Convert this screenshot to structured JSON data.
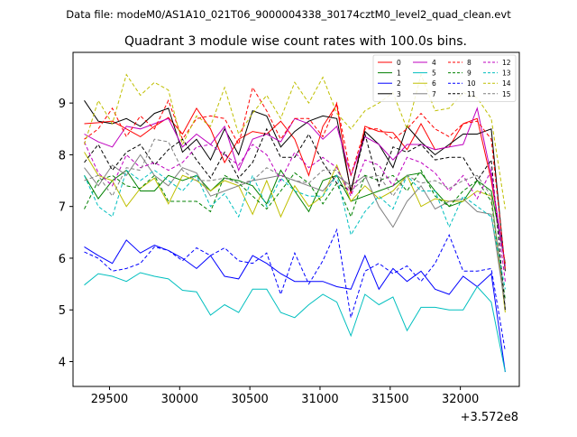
{
  "figure": {
    "suptitle": "Data file: modeM0/AS1A10_021T06_9000004338_30174cztM0_level2_quad_clean.evt"
  },
  "chart_data": {
    "type": "line",
    "title": "Quadrant 3 module wise count rates with 100.0s bins.",
    "xlabel": "",
    "ylabel": "",
    "x_offset_label": "+3.572e8",
    "xlim": [
      29240,
      32420
    ],
    "ylim": [
      3.52,
      9.98
    ],
    "xticks": [
      29500,
      30000,
      30500,
      31000,
      31500,
      32000
    ],
    "yticks": [
      4,
      5,
      6,
      7,
      8,
      9
    ],
    "grid": false,
    "legend_position": "top-right",
    "legend_columns": 4,
    "x": [
      29320,
      29420,
      29520,
      29620,
      29720,
      29820,
      29920,
      30020,
      30120,
      30220,
      30320,
      30420,
      30520,
      30620,
      30720,
      30820,
      30920,
      31020,
      31120,
      31220,
      31320,
      31420,
      31520,
      31620,
      31720,
      31820,
      31920,
      32020,
      32120,
      32220,
      32320
    ],
    "series": [
      {
        "name": "0",
        "color": "#ff0000",
        "dash": false,
        "values": [
          8.6,
          8.62,
          8.65,
          8.5,
          8.35,
          8.55,
          8.72,
          8.4,
          8.9,
          8.5,
          7.85,
          8.3,
          8.45,
          8.4,
          8.65,
          8.3,
          7.6,
          8.55,
          8.97,
          7.25,
          8.55,
          8.45,
          8.43,
          8.1,
          8.6,
          8.1,
          8.15,
          8.6,
          8.7,
          7.5,
          5.9
        ]
      },
      {
        "name": "1",
        "color": "#008000",
        "dash": false,
        "values": [
          7.6,
          7.15,
          7.5,
          7.7,
          7.3,
          7.3,
          7.6,
          7.5,
          7.6,
          7.3,
          7.55,
          7.5,
          7.4,
          7.05,
          7.7,
          7.3,
          6.9,
          7.5,
          7.6,
          7.1,
          7.2,
          7.3,
          7.4,
          7.6,
          7.65,
          7.3,
          7.0,
          7.1,
          7.5,
          7.3,
          5.9
        ]
      },
      {
        "name": "2",
        "color": "#0000ff",
        "dash": false,
        "values": [
          6.22,
          6.05,
          5.9,
          6.35,
          6.1,
          6.25,
          6.15,
          6.0,
          5.8,
          6.05,
          5.65,
          5.6,
          6.05,
          5.9,
          5.7,
          5.55,
          5.55,
          5.55,
          5.45,
          5.4,
          6.05,
          5.4,
          5.8,
          5.55,
          5.75,
          5.4,
          5.3,
          5.65,
          5.45,
          5.7,
          3.8
        ]
      },
      {
        "name": "3",
        "color": "#000000",
        "dash": false,
        "values": [
          9.05,
          8.65,
          8.6,
          8.7,
          8.55,
          8.8,
          8.9,
          8.05,
          8.3,
          7.9,
          8.5,
          8.0,
          8.85,
          8.75,
          8.15,
          8.45,
          8.65,
          8.75,
          8.7,
          7.3,
          8.45,
          8.2,
          7.75,
          8.55,
          8.25,
          8.0,
          8.2,
          8.4,
          8.4,
          8.5,
          5.75
        ]
      },
      {
        "name": "4",
        "color": "#bf00bf",
        "dash": false,
        "values": [
          8.4,
          8.25,
          8.15,
          8.55,
          8.5,
          8.6,
          8.7,
          8.15,
          8.4,
          8.2,
          8.55,
          7.7,
          8.3,
          8.4,
          8.25,
          8.7,
          8.6,
          8.3,
          8.55,
          7.6,
          8.35,
          8.2,
          7.9,
          8.2,
          8.2,
          8.1,
          8.15,
          8.2,
          8.9,
          7.6,
          5.85
        ]
      },
      {
        "name": "5",
        "color": "#00bfbf",
        "dash": false,
        "values": [
          5.48,
          5.7,
          5.65,
          5.55,
          5.72,
          5.65,
          5.6,
          5.38,
          5.35,
          4.9,
          5.1,
          4.95,
          5.4,
          5.4,
          4.95,
          4.85,
          5.1,
          5.3,
          5.15,
          4.5,
          5.3,
          5.1,
          5.25,
          4.6,
          5.05,
          5.05,
          5.0,
          5.0,
          5.45,
          5.15,
          3.8
        ]
      },
      {
        "name": "6",
        "color": "#bfbf00",
        "dash": false,
        "values": [
          8.05,
          7.6,
          7.5,
          7.0,
          7.35,
          7.55,
          7.05,
          7.6,
          7.5,
          7.3,
          7.5,
          7.4,
          6.85,
          7.5,
          6.8,
          7.4,
          7.0,
          7.2,
          7.8,
          7.1,
          7.4,
          7.15,
          7.3,
          7.6,
          7.0,
          7.15,
          7.1,
          7.1,
          7.3,
          7.2,
          4.95
        ]
      },
      {
        "name": "7",
        "color": "#7f7f7f",
        "dash": false,
        "values": [
          7.75,
          7.4,
          7.8,
          7.6,
          8.0,
          7.6,
          7.4,
          7.75,
          7.65,
          7.2,
          7.3,
          7.4,
          7.5,
          7.55,
          7.6,
          7.5,
          7.4,
          7.3,
          7.6,
          7.4,
          7.6,
          7.0,
          6.6,
          7.1,
          7.4,
          6.95,
          7.1,
          7.15,
          6.9,
          6.85,
          5.05
        ]
      },
      {
        "name": "8",
        "color": "#ff0000",
        "dash": true,
        "values": [
          8.3,
          8.5,
          8.9,
          8.35,
          8.75,
          8.5,
          9.05,
          8.3,
          8.7,
          8.75,
          8.7,
          8.2,
          9.3,
          8.85,
          8.3,
          8.7,
          8.7,
          8.35,
          9.0,
          7.6,
          8.5,
          8.5,
          8.3,
          8.5,
          8.8,
          8.5,
          8.35,
          8.6,
          8.65,
          8.3,
          5.8
        ]
      },
      {
        "name": "9",
        "color": "#008000",
        "dash": true,
        "values": [
          6.95,
          7.5,
          7.6,
          7.4,
          7.35,
          7.6,
          7.1,
          7.1,
          7.1,
          6.9,
          7.6,
          7.45,
          7.2,
          6.95,
          7.3,
          7.65,
          7.45,
          7.05,
          7.45,
          6.8,
          7.6,
          7.5,
          7.6,
          7.3,
          7.7,
          7.2,
          7.0,
          7.3,
          7.5,
          7.1,
          5.2
        ]
      },
      {
        "name": "10",
        "color": "#0000ff",
        "dash": true,
        "values": [
          6.12,
          6.0,
          5.75,
          5.8,
          5.9,
          6.22,
          6.15,
          5.95,
          6.2,
          6.05,
          6.2,
          5.95,
          5.9,
          6.1,
          5.3,
          6.1,
          5.5,
          5.95,
          6.55,
          4.85,
          5.75,
          5.9,
          5.7,
          5.85,
          5.55,
          5.9,
          6.45,
          5.75,
          5.75,
          5.8,
          4.2
        ]
      },
      {
        "name": "11",
        "color": "#000000",
        "dash": true,
        "values": [
          7.85,
          8.2,
          7.7,
          8.05,
          8.2,
          7.8,
          8.1,
          8.3,
          7.9,
          7.55,
          8.05,
          7.55,
          7.85,
          8.5,
          7.95,
          7.95,
          8.4,
          7.85,
          7.45,
          7.3,
          8.4,
          7.4,
          8.15,
          8.05,
          8.2,
          7.9,
          7.95,
          7.95,
          7.5,
          7.9,
          5.0
        ]
      },
      {
        "name": "12",
        "color": "#bf00bf",
        "dash": true,
        "values": [
          8.25,
          7.65,
          7.4,
          8.0,
          7.75,
          7.85,
          7.7,
          7.85,
          8.15,
          8.2,
          8.0,
          7.8,
          8.2,
          8.0,
          7.5,
          8.05,
          7.75,
          7.95,
          7.75,
          7.2,
          7.9,
          7.8,
          7.4,
          7.95,
          7.85,
          7.65,
          7.3,
          7.6,
          7.15,
          7.7,
          5.55
        ]
      },
      {
        "name": "13",
        "color": "#00bfbf",
        "dash": true,
        "values": [
          7.6,
          7.0,
          6.8,
          7.7,
          7.5,
          7.7,
          7.5,
          7.3,
          7.6,
          7.0,
          7.25,
          6.8,
          7.6,
          7.0,
          7.55,
          7.3,
          7.2,
          7.2,
          7.6,
          6.45,
          6.9,
          7.2,
          6.95,
          7.6,
          7.3,
          7.3,
          6.6,
          7.2,
          7.0,
          6.8,
          5.4
        ]
      },
      {
        "name": "14",
        "color": "#bfbf00",
        "dash": true,
        "values": [
          8.2,
          9.05,
          8.6,
          9.55,
          9.15,
          9.4,
          9.25,
          8.2,
          8.75,
          8.55,
          9.3,
          8.4,
          8.8,
          9.15,
          8.7,
          9.4,
          9.0,
          9.5,
          8.8,
          8.5,
          8.85,
          9.0,
          9.2,
          8.5,
          9.55,
          8.85,
          8.9,
          9.2,
          9.1,
          8.7,
          6.95
        ]
      },
      {
        "name": "15",
        "color": "#7f7f7f",
        "dash": true,
        "values": [
          7.5,
          7.6,
          7.2,
          7.75,
          7.7,
          8.3,
          8.25,
          7.7,
          7.5,
          7.5,
          7.55,
          7.45,
          7.5,
          7.75,
          7.6,
          7.5,
          7.45,
          7.7,
          7.7,
          7.3,
          7.55,
          7.6,
          7.2,
          7.6,
          7.45,
          7.5,
          7.35,
          7.5,
          7.6,
          7.2,
          5.1
        ]
      }
    ]
  }
}
